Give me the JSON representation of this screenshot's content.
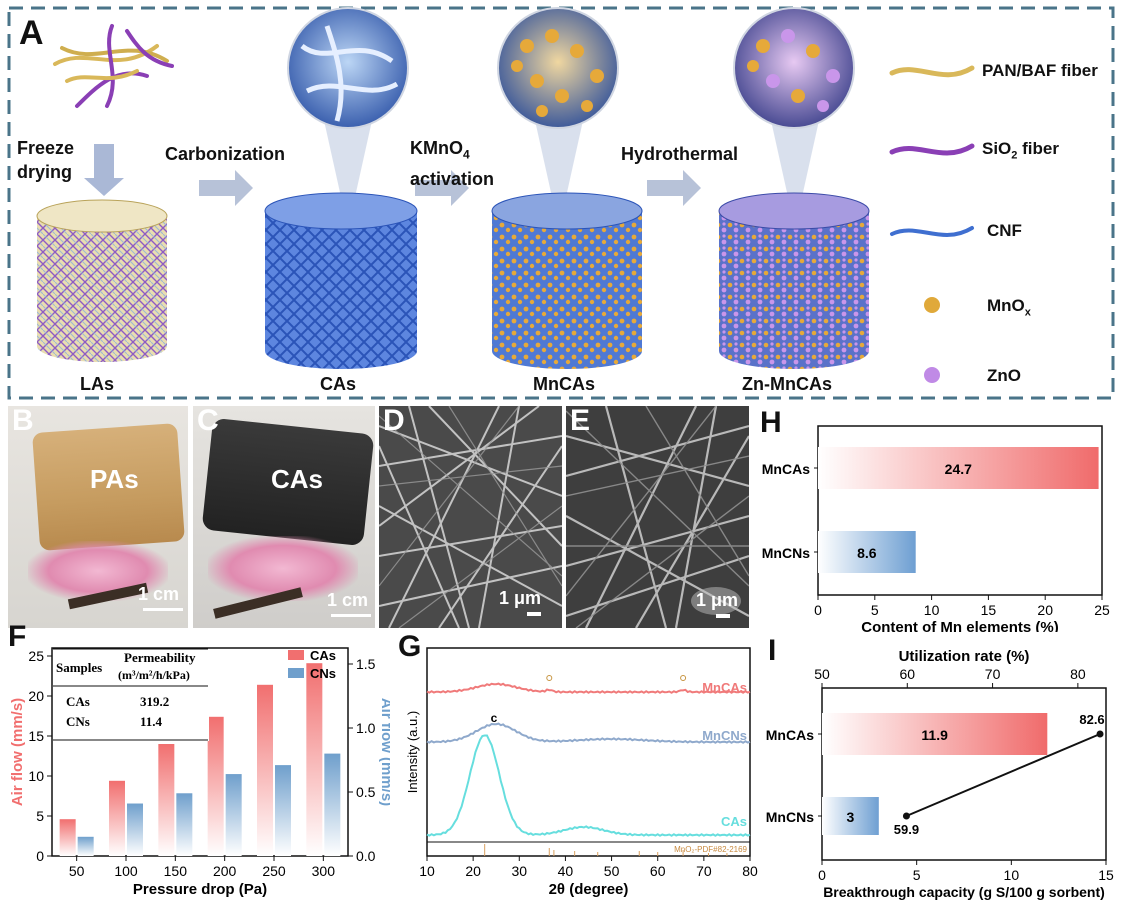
{
  "panel_a": {
    "letter": "A",
    "steps": {
      "freeze": "Freeze drying",
      "carbon": "Carbonization",
      "kmno4_line1": "KMnO",
      "kmno4_sub": "4",
      "kmno4_line2": "activation",
      "hydro": "Hydrothermal"
    },
    "labels": {
      "las": "LAs",
      "cas": "CAs",
      "mncas": "MnCAs",
      "znmncas": "Zn-MnCAs"
    },
    "legend": {
      "pan": "PAN/BAF fiber",
      "sio2_pre": "SiO",
      "sio2_sub": "2",
      "sio2_post": " fiber",
      "cnf": "CNF",
      "mnox": "MnO",
      "mnox_sub": "x",
      "zno": "ZnO"
    },
    "colors": {
      "pan": "#d9b85a",
      "sio2": "#8a3fb5",
      "cnf": "#3f6fd0",
      "mnox": "#e0a93a",
      "zno": "#c08ae6",
      "frame": "#4a7489"
    }
  },
  "panel_b": {
    "letter": "B",
    "label": "PAs",
    "scale": "1 cm"
  },
  "panel_c": {
    "letter": "C",
    "label": "CAs",
    "scale": "1 cm"
  },
  "panel_d": {
    "letter": "D",
    "scale": "1 μm"
  },
  "panel_e": {
    "letter": "E",
    "scale": "1 μm"
  },
  "panel_h": {
    "letter": "H",
    "chart_data": {
      "type": "bar",
      "orientation": "horizontal",
      "categories": [
        "MnCAs",
        "MnCNs"
      ],
      "values": [
        24.7,
        8.6
      ],
      "xlabel": "Content of Mn elements (%)",
      "xlim": [
        0,
        25
      ],
      "xticks": [
        0,
        5,
        10,
        15,
        20,
        25
      ],
      "colors": [
        "#f06b6b",
        "#6e9fd2"
      ]
    }
  },
  "panel_f": {
    "letter": "F",
    "chart_data": {
      "type": "bar",
      "categories": [
        "50",
        "100",
        "150",
        "200",
        "250",
        "300"
      ],
      "series": [
        {
          "name": "CAs",
          "axis": "left",
          "values": [
            4.6,
            9.4,
            14.0,
            17.4,
            21.4,
            24.1
          ],
          "color": "#f16f6f"
        },
        {
          "name": "CNs",
          "axis": "right",
          "values": [
            0.15,
            0.41,
            0.49,
            0.64,
            0.71,
            0.8
          ],
          "color": "#6f9fcc"
        }
      ],
      "xlabel": "Pressure drop (Pa)",
      "ylabel_left": "Air flow (mm/s)",
      "ylabel_right": "Air flow (mm/s)",
      "ylim_left": [
        0,
        26
      ],
      "ylim_right": [
        0,
        1.625
      ],
      "yticks_left": [
        0,
        5,
        10,
        15,
        20,
        25
      ],
      "yticks_right": [
        "0.0",
        "0.5",
        "1.0",
        "1.5"
      ]
    },
    "table": {
      "header": [
        "Samples",
        "Permeability"
      ],
      "unit": "(m³/m²/h/kPa)",
      "rows": [
        [
          "CAs",
          "319.2"
        ],
        [
          "CNs",
          "11.4"
        ]
      ]
    }
  },
  "panel_g": {
    "letter": "G",
    "chart_data": {
      "type": "line",
      "xlabel": "2θ (degree)",
      "ylabel": "Intensity (a.u.)",
      "xlim": [
        10,
        80
      ],
      "xticks": [
        10,
        20,
        30,
        40,
        50,
        60,
        70,
        80
      ],
      "series": [
        {
          "name": "MnCAs",
          "color": "#f07a7a"
        },
        {
          "name": "MnCNs",
          "color": "#8fa9cc"
        },
        {
          "name": "CAs",
          "color": "#66dede"
        }
      ],
      "annotations": [
        "c"
      ],
      "reference": "MnO₂-PDF#82-2169"
    }
  },
  "panel_i": {
    "letter": "I",
    "chart_data": {
      "type": "bar",
      "orientation": "horizontal",
      "categories": [
        "MnCAs",
        "MnCNs"
      ],
      "values": [
        11.9,
        3
      ],
      "xlabel": "Breakthrough  capacity (g S/100 g sorbent)",
      "xlim": [
        0,
        15
      ],
      "xticks": [
        0,
        5,
        10,
        15
      ],
      "top_axis": {
        "label": "Utilization rate (%)",
        "lim": [
          50,
          83.3
        ],
        "ticks": [
          50,
          60,
          70,
          80
        ],
        "points": [
          59.9,
          82.6
        ]
      },
      "colors": [
        "#f06b6b",
        "#6e9fd2"
      ]
    }
  }
}
